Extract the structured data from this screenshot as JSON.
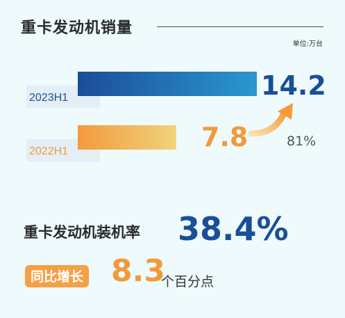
{
  "title": "重卡发动机销量",
  "unit_label": "单位:万台",
  "chart_data": {
    "type": "bar",
    "orientation": "horizontal",
    "categories": [
      "2023H1",
      "2022H1"
    ],
    "values": [
      14.2,
      7.8
    ],
    "value_labels": [
      "14.2",
      "7.8"
    ],
    "growth_label": "81%",
    "colors": [
      "#1d5fa8",
      "#f5a046"
    ]
  },
  "metric": {
    "label": "重卡发动机装机率",
    "value": "38.4%"
  },
  "growth": {
    "badge": "同比增长",
    "value": "8.3",
    "unit": "个百分点"
  }
}
